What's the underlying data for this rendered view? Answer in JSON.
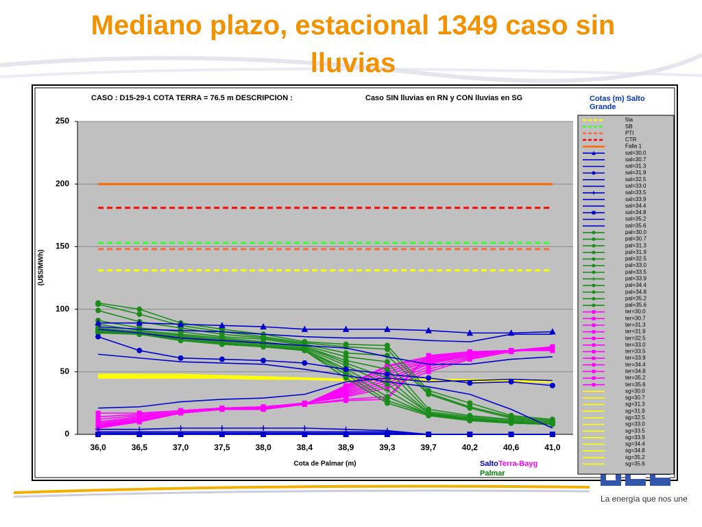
{
  "slide": {
    "title": "Mediano plazo, estacional 1349 caso sin lluvias",
    "tagline": "La energía que nos une"
  },
  "chart_data": {
    "type": "line",
    "title": "CASO : D15-29-1 COTA TERRA = 76.5 m  DESCRIPCION :",
    "subtitle": "Caso SIN lluvias en RN y CON lluvias en SG",
    "xlabel": "Cota de Palmar (m)",
    "ylabel": "(U$S/MWh)",
    "legend_title": "Cotas (m) Salto Grande",
    "legend": "right",
    "grid": true,
    "annotations": [
      {
        "text": "Salto",
        "color": "#0000cc"
      },
      {
        "text": "Terra-Bayg",
        "color": "#ff00ff"
      },
      {
        "text": "Palmar",
        "color": "#008000"
      }
    ],
    "categories": [
      "36,0",
      "36,5",
      "37,0",
      "37,5",
      "38,0",
      "38,4",
      "38,9",
      "39,3",
      "39,7",
      "40,2",
      "40,6",
      "41,0"
    ],
    "ylim": [
      0,
      250
    ],
    "yticks": [
      0,
      50,
      100,
      150,
      200,
      250
    ],
    "series": [
      {
        "name": "5ta",
        "color": "#ffff00",
        "dash": true,
        "values": [
          131,
          131,
          131,
          131,
          131,
          131,
          131,
          131,
          131,
          131,
          131,
          131
        ]
      },
      {
        "name": "SB",
        "color": "#33ff33",
        "dash": true,
        "values": [
          153,
          153,
          153,
          153,
          153,
          153,
          153,
          153,
          153,
          153,
          153,
          153
        ]
      },
      {
        "name": "PTI",
        "color": "#ff6633",
        "dash": true,
        "values": [
          148,
          148,
          148,
          148,
          148,
          148,
          148,
          148,
          148,
          148,
          148,
          148
        ]
      },
      {
        "name": "CTR",
        "color": "#ff0000",
        "dash": true,
        "values": [
          181,
          181,
          181,
          181,
          181,
          181,
          181,
          181,
          181,
          181,
          181,
          181
        ]
      },
      {
        "name": "Falla 1",
        "color": "#ff6600",
        "dash": false,
        "values": [
          200,
          200,
          200,
          200,
          200,
          200,
          200,
          200,
          200,
          200,
          200,
          200
        ]
      },
      {
        "name": "sal=30.0",
        "color": "#0000cc",
        "marker": "triangle",
        "values": [
          89,
          89,
          88,
          87,
          86,
          84,
          84,
          84,
          83,
          81,
          81,
          82
        ]
      },
      {
        "name": "sal=30.7",
        "color": "#0000cc",
        "values": [
          86,
          84,
          83,
          82,
          80,
          78,
          77,
          77,
          75,
          74,
          80,
          80
        ]
      },
      {
        "name": "sal=31.3",
        "color": "#0000cc",
        "values": [
          84,
          81,
          77,
          75,
          73,
          71,
          69,
          62,
          56,
          56,
          60,
          62
        ]
      },
      {
        "name": "sal=31.9",
        "color": "#0000cc",
        "marker": "circle",
        "values": [
          78,
          67,
          61,
          60,
          59,
          57,
          52,
          48,
          45,
          41,
          42,
          39
        ]
      },
      {
        "name": "sal=32.5",
        "color": "#0000cc",
        "values": [
          64,
          61,
          58,
          57,
          56,
          52,
          47,
          42,
          38,
          32,
          20,
          5
        ]
      },
      {
        "name": "sal=33.0",
        "color": "#0000cc",
        "values": [
          21,
          22,
          26,
          28,
          29,
          32,
          42,
          45,
          42,
          43,
          44,
          43
        ]
      },
      {
        "name": "sal=33.5",
        "color": "#0000cc",
        "marker": "plus",
        "values": [
          4,
          4,
          5,
          5,
          5,
          5,
          4,
          3,
          0,
          0,
          0,
          0
        ]
      },
      {
        "name": "sal=33.9",
        "color": "#0000cc",
        "values": [
          2,
          2,
          2,
          2,
          2,
          2,
          2,
          2,
          0,
          0,
          0,
          0
        ]
      },
      {
        "name": "sal=34.4",
        "color": "#0000cc",
        "values": [
          1,
          1,
          1,
          1,
          1,
          1,
          1,
          1,
          0,
          0,
          0,
          0
        ]
      },
      {
        "name": "sal=34.8",
        "color": "#0000cc",
        "marker": "square",
        "values": [
          0,
          0,
          0,
          0,
          0,
          0,
          0,
          0,
          0,
          0,
          0,
          0
        ]
      },
      {
        "name": "sal=35.2",
        "color": "#0000cc",
        "values": [
          0,
          0,
          0,
          0,
          0,
          0,
          0,
          0,
          0,
          0,
          0,
          0
        ]
      },
      {
        "name": "sal=35.6",
        "color": "#0000cc",
        "values": [
          0,
          0,
          0,
          0,
          0,
          0,
          0,
          0,
          0,
          0,
          0,
          0
        ]
      },
      {
        "name": "pal=30.0",
        "color": "#1a8c1a",
        "marker": "circle",
        "values": [
          105,
          100,
          89,
          84,
          80,
          74,
          72,
          71,
          35,
          25,
          15,
          12
        ]
      },
      {
        "name": "pal=30.7",
        "color": "#1a8c1a",
        "marker": "circle",
        "values": [
          104,
          96,
          87,
          82,
          78,
          73,
          70,
          68,
          33,
          22,
          14,
          11
        ]
      },
      {
        "name": "pal=31.3",
        "color": "#1a8c1a",
        "marker": "circle",
        "values": [
          99,
          90,
          85,
          80,
          77,
          72,
          65,
          63,
          32,
          21,
          13,
          10
        ]
      },
      {
        "name": "pal=31.9",
        "color": "#1a8c1a",
        "marker": "circle",
        "values": [
          91,
          85,
          82,
          78,
          76,
          71,
          62,
          58,
          20,
          15,
          12,
          10
        ]
      },
      {
        "name": "pal=32.5",
        "color": "#1a8c1a",
        "marker": "circle",
        "values": [
          88,
          83,
          80,
          77,
          74,
          70,
          59,
          52,
          18,
          14,
          11,
          9
        ]
      },
      {
        "name": "pal=33.0",
        "color": "#1a8c1a",
        "marker": "circle",
        "values": [
          85,
          82,
          79,
          76,
          73,
          70,
          57,
          45,
          17,
          13,
          10,
          9
        ]
      },
      {
        "name": "pal=33.5",
        "color": "#1a8c1a",
        "marker": "circle",
        "values": [
          84,
          81,
          78,
          75,
          72,
          69,
          55,
          40,
          17,
          12,
          10,
          9
        ]
      },
      {
        "name": "pal=33.9",
        "color": "#1a8c1a",
        "marker": "plus",
        "values": [
          83,
          80,
          77,
          74,
          71,
          68,
          52,
          35,
          16,
          12,
          9,
          8
        ]
      },
      {
        "name": "pal=34.4",
        "color": "#1a8c1a",
        "marker": "circle",
        "values": [
          82,
          80,
          76,
          73,
          70,
          68,
          50,
          30,
          16,
          12,
          9,
          8
        ]
      },
      {
        "name": "pal=34.8",
        "color": "#1a8c1a",
        "marker": "circle",
        "values": [
          82,
          80,
          76,
          73,
          70,
          67,
          48,
          27,
          16,
          11,
          9,
          8
        ]
      },
      {
        "name": "pal=35.2",
        "color": "#1a8c1a",
        "marker": "circle",
        "values": [
          81,
          80,
          75,
          72,
          70,
          67,
          45,
          25,
          15,
          11,
          9,
          8
        ]
      },
      {
        "name": "pal=35.6",
        "color": "#1a8c1a",
        "marker": "circle",
        "values": [
          81,
          80,
          75,
          72,
          70,
          67,
          45,
          25,
          15,
          11,
          9,
          8
        ]
      },
      {
        "name": "ter=30.0",
        "color": "#ff00ff",
        "marker": "square",
        "values": [
          17,
          17,
          19,
          21,
          22,
          25,
          30,
          37,
          50,
          60,
          66,
          70
        ]
      },
      {
        "name": "ter=30.7",
        "color": "#ff00ff",
        "marker": "square",
        "values": [
          14,
          16,
          19,
          21,
          22,
          25,
          31,
          39,
          52,
          61,
          66,
          70
        ]
      },
      {
        "name": "ter=31.3",
        "color": "#ff00ff",
        "marker": "square",
        "values": [
          12,
          15,
          18,
          21,
          22,
          25,
          32,
          41,
          54,
          62,
          67,
          70
        ]
      },
      {
        "name": "ter=31.9",
        "color": "#ff00ff",
        "marker": "square",
        "values": [
          10,
          14,
          18,
          20,
          21,
          24,
          33,
          43,
          56,
          63,
          67,
          69
        ]
      },
      {
        "name": "ter=32.5",
        "color": "#ff00ff",
        "marker": "square",
        "values": [
          9,
          13,
          18,
          20,
          21,
          24,
          34,
          45,
          57,
          63,
          67,
          69
        ]
      },
      {
        "name": "ter=33.0",
        "color": "#ff00ff",
        "marker": "square",
        "values": [
          8,
          12,
          17,
          20,
          21,
          24,
          35,
          48,
          58,
          64,
          67,
          69
        ]
      },
      {
        "name": "ter=33.5",
        "color": "#ff00ff",
        "marker": "square",
        "values": [
          7,
          12,
          17,
          20,
          21,
          24,
          36,
          50,
          59,
          64,
          67,
          68
        ]
      },
      {
        "name": "ter=33.9",
        "color": "#ff00ff",
        "marker": "square",
        "values": [
          7,
          11,
          17,
          20,
          21,
          24,
          37,
          52,
          60,
          65,
          67,
          68
        ]
      },
      {
        "name": "ter=34.4",
        "color": "#ff00ff",
        "marker": "square",
        "values": [
          6,
          11,
          17,
          20,
          20,
          24,
          38,
          54,
          61,
          65,
          67,
          68
        ]
      },
      {
        "name": "ter=34.8",
        "color": "#ff00ff",
        "marker": "square",
        "values": [
          6,
          10,
          17,
          20,
          20,
          24,
          39,
          55,
          62,
          65,
          67,
          68
        ]
      },
      {
        "name": "ter=35.2",
        "color": "#ff00ff",
        "marker": "square",
        "values": [
          5,
          10,
          17,
          20,
          20,
          24,
          28,
          30,
          63,
          66,
          67,
          67
        ]
      },
      {
        "name": "ter=35.6",
        "color": "#ff00ff",
        "marker": "square",
        "values": [
          5,
          10,
          17,
          20,
          20,
          24,
          27,
          28,
          63,
          66,
          67,
          67
        ]
      },
      {
        "name": "sg=30.0",
        "color": "#ffff00",
        "values": [
          48,
          48,
          48,
          47,
          46,
          45,
          44,
          44,
          44,
          44,
          44,
          43
        ]
      },
      {
        "name": "sg=30.7",
        "color": "#ffff00",
        "values": [
          48,
          47,
          47,
          47,
          46,
          45,
          44,
          44,
          44,
          44,
          44,
          43
        ]
      },
      {
        "name": "sg=31.3",
        "color": "#ffff00",
        "values": [
          47,
          47,
          47,
          46,
          46,
          45,
          44,
          44,
          44,
          44,
          44,
          43
        ]
      },
      {
        "name": "sg=31.9",
        "color": "#ffff00",
        "values": [
          47,
          47,
          47,
          46,
          45,
          45,
          44,
          44,
          44,
          44,
          43,
          43
        ]
      },
      {
        "name": "sg=32.5",
        "color": "#ffff00",
        "values": [
          47,
          46,
          46,
          46,
          45,
          45,
          44,
          44,
          44,
          43,
          43,
          42
        ]
      },
      {
        "name": "sg=33.0",
        "color": "#ffff00",
        "values": [
          46,
          46,
          46,
          46,
          45,
          44,
          44,
          44,
          44,
          43,
          43,
          42
        ]
      },
      {
        "name": "sg=33.5",
        "color": "#ffff00",
        "values": [
          46,
          46,
          46,
          45,
          45,
          44,
          44,
          44,
          43,
          43,
          43,
          42
        ]
      },
      {
        "name": "sg=33.9",
        "color": "#ffff00",
        "values": [
          46,
          46,
          45,
          45,
          45,
          44,
          44,
          43,
          43,
          43,
          43,
          42
        ]
      },
      {
        "name": "sg=34.4",
        "color": "#ffff00",
        "values": [
          45,
          45,
          45,
          45,
          45,
          44,
          44,
          43,
          43,
          43,
          43,
          42
        ]
      },
      {
        "name": "sg=34.8",
        "color": "#ffff00",
        "values": [
          45,
          45,
          45,
          45,
          44,
          44,
          44,
          43,
          43,
          43,
          42,
          42
        ]
      },
      {
        "name": "sg=35.2",
        "color": "#ffff00",
        "values": [
          45,
          45,
          45,
          45,
          44,
          44,
          43,
          43,
          43,
          43,
          42,
          42
        ]
      },
      {
        "name": "sg=35.6",
        "color": "#ffff00",
        "values": [
          45,
          45,
          45,
          45,
          44,
          44,
          43,
          43,
          43,
          42,
          42,
          42
        ]
      }
    ]
  }
}
